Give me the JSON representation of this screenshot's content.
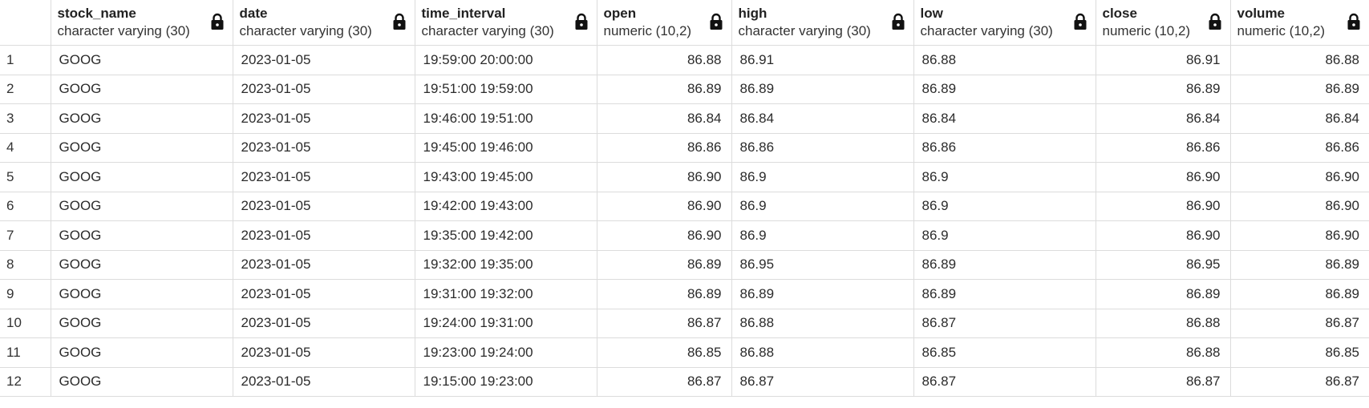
{
  "columns": [
    {
      "name": "stock_name",
      "type": "character varying (30)",
      "align": "txt"
    },
    {
      "name": "date",
      "type": "character varying (30)",
      "align": "txt"
    },
    {
      "name": "time_interval",
      "type": "character varying (30)",
      "align": "txt"
    },
    {
      "name": "open",
      "type": "numeric (10,2)",
      "align": "num"
    },
    {
      "name": "high",
      "type": "character varying (30)",
      "align": "txt"
    },
    {
      "name": "low",
      "type": "character varying (30)",
      "align": "txt"
    },
    {
      "name": "close",
      "type": "numeric (10,2)",
      "align": "num"
    },
    {
      "name": "volume",
      "type": "numeric (10,2)",
      "align": "num"
    }
  ],
  "rows": [
    [
      "1",
      "GOOG",
      "2023-01-05",
      "19:59:00 20:00:00",
      "86.88",
      "86.91",
      "86.88",
      "86.91",
      "86.88"
    ],
    [
      "2",
      "GOOG",
      "2023-01-05",
      "19:51:00 19:59:00",
      "86.89",
      "86.89",
      "86.89",
      "86.89",
      "86.89"
    ],
    [
      "3",
      "GOOG",
      "2023-01-05",
      "19:46:00 19:51:00",
      "86.84",
      "86.84",
      "86.84",
      "86.84",
      "86.84"
    ],
    [
      "4",
      "GOOG",
      "2023-01-05",
      "19:45:00 19:46:00",
      "86.86",
      "86.86",
      "86.86",
      "86.86",
      "86.86"
    ],
    [
      "5",
      "GOOG",
      "2023-01-05",
      "19:43:00 19:45:00",
      "86.90",
      "86.9",
      "86.9",
      "86.90",
      "86.90"
    ],
    [
      "6",
      "GOOG",
      "2023-01-05",
      "19:42:00 19:43:00",
      "86.90",
      "86.9",
      "86.9",
      "86.90",
      "86.90"
    ],
    [
      "7",
      "GOOG",
      "2023-01-05",
      "19:35:00 19:42:00",
      "86.90",
      "86.9",
      "86.9",
      "86.90",
      "86.90"
    ],
    [
      "8",
      "GOOG",
      "2023-01-05",
      "19:32:00 19:35:00",
      "86.89",
      "86.95",
      "86.89",
      "86.95",
      "86.89"
    ],
    [
      "9",
      "GOOG",
      "2023-01-05",
      "19:31:00 19:32:00",
      "86.89",
      "86.89",
      "86.89",
      "86.89",
      "86.89"
    ],
    [
      "10",
      "GOOG",
      "2023-01-05",
      "19:24:00 19:31:00",
      "86.87",
      "86.88",
      "86.87",
      "86.88",
      "86.87"
    ],
    [
      "11",
      "GOOG",
      "2023-01-05",
      "19:23:00 19:24:00",
      "86.85",
      "86.88",
      "86.85",
      "86.88",
      "86.85"
    ],
    [
      "12",
      "GOOG",
      "2023-01-05",
      "19:15:00 19:23:00",
      "86.87",
      "86.87",
      "86.87",
      "86.87",
      "86.87"
    ]
  ],
  "icons": {
    "column_lock": "lock-icon"
  },
  "colors": {
    "grid_line": "#dcdcdc",
    "text": "#222222",
    "background": "#ffffff"
  }
}
